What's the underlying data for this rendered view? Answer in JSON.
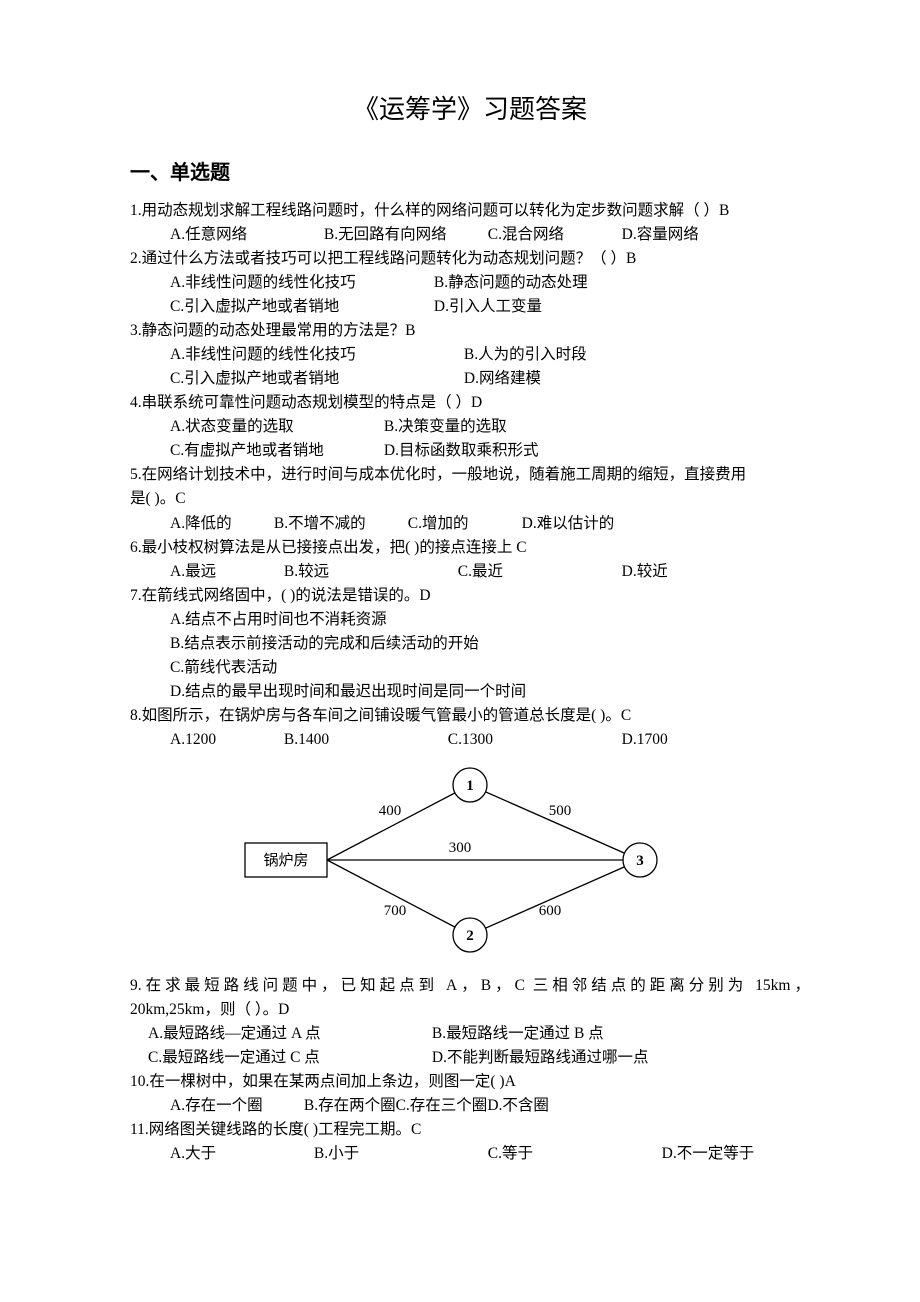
{
  "title": "《运筹学》习题答案",
  "section1": "一、单选题",
  "q1": {
    "text": "1.用动态规划求解工程线路问题时，什么样的网络问题可以转化为定步数问题求解（  ）B",
    "a": "A.任意网络",
    "b": "B.无回路有向网络",
    "c": "C.混合网络",
    "d": "D.容量网络"
  },
  "q2": {
    "text": "2.通过什么方法或者技巧可以把工程线路问题转化为动态规划问题？（   ）B",
    "a": "A.非线性问题的线性化技巧",
    "b": "B.静态问题的动态处理",
    "c": "C.引入虚拟产地或者销地",
    "d": "D.引入人工变量"
  },
  "q3": {
    "text": "3.静态问题的动态处理最常用的方法是？B",
    "a": "A.非线性问题的线性化技巧",
    "b": "B.人为的引入时段",
    "c": "C.引入虚拟产地或者销地",
    "d": "D.网络建模"
  },
  "q4": {
    "text": "4.串联系统可靠性问题动态规划模型的特点是（     ）D",
    "a": "A.状态变量的选取",
    "b": "B.决策变量的选取",
    "c": "C.有虚拟产地或者销地",
    "d": "D.目标函数取乘积形式"
  },
  "q5": {
    "text1": "5.在网络计划技术中，进行时间与成本优化时，一般地说，随着施工周期的缩短，直接费用",
    "text2": "是(     )。C",
    "a": "A.降低的",
    "b": "B.不增不减的",
    "c": "C.增加的",
    "d": "D.难以估计的"
  },
  "q6": {
    "text": "6.最小枝权树算法是从已接接点出发，把(      )的接点连接上 C",
    "a": "A.最远",
    "b": "B.较远",
    "c": "C.最近",
    "d": "D.较近"
  },
  "q7": {
    "text": "7.在箭线式网络固中，(       )的说法是错误的。D",
    "a": "A.结点不占用时间也不消耗资源",
    "b": "B.结点表示前接活动的完成和后续活动的开始",
    "c": "C.箭线代表活动",
    "d": "D.结点的最早出现时间和最迟出现时间是同一个时间"
  },
  "q8": {
    "text": "8.如图所示，在锅炉房与各车间之间铺设暖气管最小的管道总长度是(      )。C",
    "a": "A.1200",
    "b": "B.1400",
    "c": "C.1300",
    "d": "D.1700"
  },
  "fig": {
    "boiler": "锅炉房",
    "n1": "1",
    "n2": "2",
    "n3": "3",
    "e_b1": "400",
    "e_13": "500",
    "e_b3": "300",
    "e_b2": "700",
    "e_23": "600",
    "stroke": "#000000",
    "fill_bg": "#ffffff",
    "font_size": 15,
    "node_radius": 17,
    "stroke_w": 1.3,
    "rect_w": 82,
    "rect_h": 34
  },
  "q9": {
    "text1": "9.在求最短路线问题中，已知起点到 A，B，C 三相邻结点的距离分别为 15km，",
    "text2": "20km,25km，则（      ）。D",
    "a": "A.最短路线—定通过 A 点",
    "b": "B.最短路线一定通过 B 点",
    "c": "C.最短路线一定通过 C 点",
    "d": "D.不能判断最短路线通过哪一点"
  },
  "q10": {
    "text": "10.在一棵树中，如果在某两点间加上条边，则图一定(       )A",
    "a": "A.存在一个圈",
    "b": "B.存在两个圈",
    "c": "C.存在三个圈",
    "d": "D.不含圈"
  },
  "q11": {
    "text": "11.网络图关键线路的长度(       )工程完工期。C",
    "a": "A.大于",
    "b": "B.小于",
    "c": "C.等于",
    "d": "D.不一定等于"
  }
}
